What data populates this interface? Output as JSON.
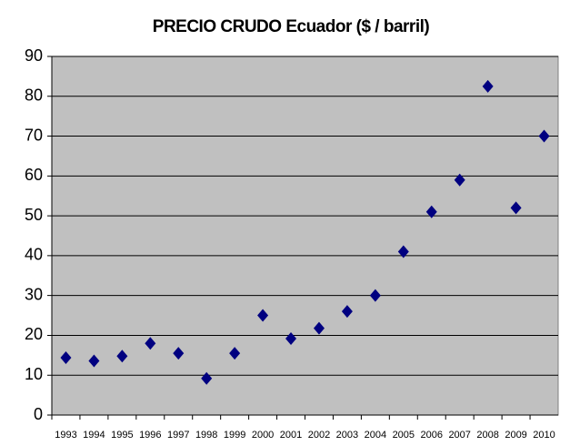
{
  "chart_data": {
    "type": "line",
    "title": "PRECIO CRUDO Ecuador ($ / barril)",
    "categories": [
      "1993",
      "1994",
      "1995",
      "1996",
      "1997",
      "1998",
      "1999",
      "2000",
      "2001",
      "2002",
      "2003",
      "2004",
      "2005",
      "2006",
      "2007",
      "2008",
      "2009",
      "2010"
    ],
    "series": [
      {
        "name": "PRECIO CRUDO Ecuador",
        "color": "#000080",
        "values": [
          14.4,
          13.6,
          14.8,
          18.0,
          15.5,
          9.2,
          15.5,
          25.0,
          19.2,
          21.8,
          26.0,
          30.0,
          41.0,
          51.0,
          59.0,
          82.5,
          52.0,
          70.0
        ]
      }
    ],
    "ylim": [
      0,
      90
    ],
    "yticks": [
      0,
      10,
      20,
      30,
      40,
      50,
      60,
      70,
      80,
      90
    ],
    "grid": true
  }
}
